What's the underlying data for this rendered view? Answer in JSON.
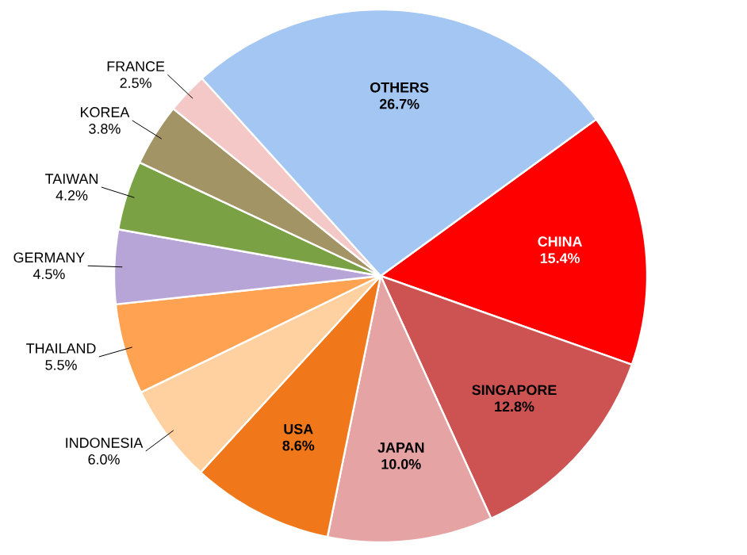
{
  "chart_data": {
    "type": "pie",
    "categories": [
      "CHINA",
      "SINGAPORE",
      "JAPAN",
      "USA",
      "INDONESIA",
      "THAILAND",
      "GERMANY",
      "TAIWAN",
      "KOREA",
      "FRANCE",
      "OTHERS"
    ],
    "values": [
      15.4,
      12.8,
      10.0,
      8.6,
      6.0,
      5.5,
      4.5,
      4.2,
      3.8,
      2.5,
      26.7
    ],
    "value_labels": [
      "15.4%",
      "12.8%",
      "10.0%",
      "8.6%",
      "6.0%",
      "5.5%",
      "4.5%",
      "4.2%",
      "3.8%",
      "2.5%",
      "26.7%"
    ],
    "colors": [
      "#ff0000",
      "#cd5252",
      "#e6a3a3",
      "#f0781a",
      "#ffd0a0",
      "#ffa352",
      "#b8a5d8",
      "#7aa245",
      "#a39466",
      "#f5c8c8",
      "#a3c6f2"
    ]
  }
}
